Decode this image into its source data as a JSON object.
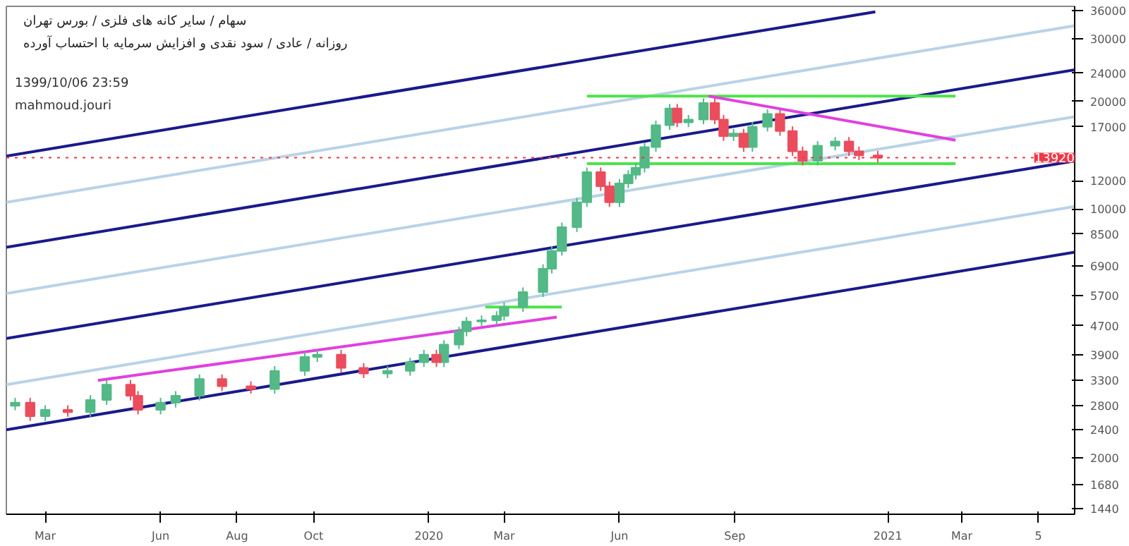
{
  "chart_data": {
    "type": "candlestick",
    "title": "سهام / سایر کانه های فلزی / بورس تهران",
    "subtitle": "روزانه / عادی / سود نقدی و افزایش سرمایه با احتساب آورده",
    "annotations": [
      "1399/10/06 23:59",
      "mahmoud.jouri"
    ],
    "log": "y",
    "xlim": [
      "2019-01-29",
      "2021-05-30"
    ],
    "ylim": [
      1390,
      37000
    ],
    "xticks": [
      {
        "value": "2019-03-01",
        "label": "Mar"
      },
      {
        "value": "2019-06-01",
        "label": "Jun"
      },
      {
        "value": "2019-08-01",
        "label": "Aug"
      },
      {
        "value": "2019-10-01",
        "label": "Oct"
      },
      {
        "value": "2020-01-01",
        "label": "2020"
      },
      {
        "value": "2020-03-01",
        "label": "Mar"
      },
      {
        "value": "2020-06-01",
        "label": "Jun"
      },
      {
        "value": "2020-09-01",
        "label": "Sep"
      },
      {
        "value": "2021-01-01",
        "label": "2021"
      },
      {
        "value": "2021-03-01",
        "label": "Mar"
      },
      {
        "value": "2021-05-01",
        "label": "5"
      }
    ],
    "yticks": [
      1440,
      1680,
      2000,
      2400,
      2800,
      3300,
      3900,
      4700,
      5700,
      6900,
      8500,
      10000,
      12000,
      17000,
      20000,
      24000,
      30000,
      36000
    ],
    "x": [
      "2019-02-05",
      "2019-02-17",
      "2019-03-01",
      "2019-03-19",
      "2019-04-06",
      "2019-04-19",
      "2019-05-08",
      "2019-05-14",
      "2019-06-01",
      "2019-06-13",
      "2019-07-02",
      "2019-07-20",
      "2019-08-12",
      "2019-08-31",
      "2019-09-24",
      "2019-10-04",
      "2019-10-23",
      "2019-11-10",
      "2019-11-29",
      "2019-12-17",
      "2019-12-28",
      "2020-01-07",
      "2020-01-13",
      "2020-01-25",
      "2020-01-31",
      "2020-02-12",
      "2020-02-24",
      "2020-03-01",
      "2020-03-16",
      "2020-04-01",
      "2020-04-08",
      "2020-04-16",
      "2020-04-28",
      "2020-05-06",
      "2020-05-17",
      "2020-05-24",
      "2020-06-01",
      "2020-06-08",
      "2020-06-14",
      "2020-06-21",
      "2020-06-30",
      "2020-07-11",
      "2020-07-17",
      "2020-07-26",
      "2020-08-07",
      "2020-08-16",
      "2020-08-23",
      "2020-08-31",
      "2020-09-08",
      "2020-09-15",
      "2020-09-27",
      "2020-10-07",
      "2020-10-17",
      "2020-10-25",
      "2020-11-06",
      "2020-11-20",
      "2020-12-01",
      "2020-12-09",
      "2020-12-24"
    ],
    "ohlc": [
      [
        2800,
        2950,
        2720,
        2860
      ],
      [
        2860,
        2950,
        2540,
        2620
      ],
      [
        2620,
        2810,
        2540,
        2730
      ],
      [
        2730,
        2810,
        2610,
        2690
      ],
      [
        2690,
        3000,
        2610,
        2910
      ],
      [
        2910,
        3310,
        2820,
        3210
      ],
      [
        3210,
        3310,
        2900,
        2990
      ],
      [
        2990,
        3080,
        2650,
        2730
      ],
      [
        2730,
        2950,
        2650,
        2860
      ],
      [
        2860,
        3080,
        2770,
        2990
      ],
      [
        2990,
        3430,
        2900,
        3330
      ],
      [
        3330,
        3430,
        3080,
        3180
      ],
      [
        3180,
        3280,
        3030,
        3120
      ],
      [
        3120,
        3620,
        3030,
        3510
      ],
      [
        3510,
        3960,
        3400,
        3840
      ],
      [
        3840,
        4020,
        3720,
        3900
      ],
      [
        3900,
        4020,
        3470,
        3580
      ],
      [
        3580,
        3690,
        3350,
        3450
      ],
      [
        3450,
        3620,
        3350,
        3510
      ],
      [
        3510,
        3820,
        3400,
        3710
      ],
      [
        3710,
        4020,
        3600,
        3900
      ],
      [
        3900,
        4020,
        3600,
        3710
      ],
      [
        3710,
        4280,
        3600,
        4160
      ],
      [
        4160,
        4670,
        4040,
        4530
      ],
      [
        4530,
        4970,
        4390,
        4830
      ],
      [
        4830,
        5020,
        4690,
        4870
      ],
      [
        4870,
        5160,
        4720,
        5010
      ],
      [
        5010,
        5460,
        4860,
        5300
      ],
      [
        5300,
        6020,
        5140,
        5840
      ],
      [
        5840,
        6990,
        5660,
        6790
      ],
      [
        6790,
        7850,
        6590,
        7620
      ],
      [
        7620,
        9150,
        7390,
        8880
      ],
      [
        8880,
        10740,
        8610,
        10430
      ],
      [
        10430,
        13060,
        10120,
        12680
      ],
      [
        12680,
        13060,
        11220,
        11570
      ],
      [
        11570,
        11920,
        10120,
        10430
      ],
      [
        10430,
        12130,
        10120,
        11780
      ],
      [
        11780,
        12830,
        11430,
        12460
      ],
      [
        12460,
        13430,
        12090,
        13040
      ],
      [
        13040,
        15360,
        12650,
        14910
      ],
      [
        14910,
        17670,
        14460,
        17160
      ],
      [
        17160,
        19690,
        16650,
        19120
      ],
      [
        19120,
        19690,
        16960,
        17480
      ],
      [
        17480,
        18340,
        16960,
        17810
      ],
      [
        17810,
        20410,
        17280,
        19820
      ],
      [
        19820,
        20410,
        17280,
        17810
      ],
      [
        17810,
        18340,
        15510,
        15990
      ],
      [
        15990,
        16760,
        15510,
        16270
      ],
      [
        16270,
        16760,
        14460,
        14910
      ],
      [
        14910,
        17510,
        14460,
        17000
      ],
      [
        17000,
        19010,
        16490,
        18460
      ],
      [
        18460,
        19010,
        16040,
        16540
      ],
      [
        16540,
        17040,
        14070,
        14510
      ],
      [
        14510,
        14950,
        13230,
        13640
      ],
      [
        13640,
        15490,
        13230,
        15040
      ],
      [
        15040,
        15910,
        14590,
        15450
      ],
      [
        15450,
        15910,
        14070,
        14510
      ],
      [
        14510,
        14950,
        13700,
        14120
      ],
      [
        14120,
        14540,
        13500,
        13920
      ]
    ],
    "series": [
      {
        "type": "line",
        "color": "#1a1a8c",
        "x": [
          "2019-01-29",
          "2020-12-22"
        ],
        "values": [
          14060,
          35720
        ]
      },
      {
        "type": "line",
        "color": "#1a1a8c",
        "x": [
          "2019-01-29",
          "2021-05-30"
        ],
        "values": [
          7800,
          24550
        ]
      },
      {
        "type": "line",
        "color": "#1a1a8c",
        "x": [
          "2019-01-29",
          "2021-05-30"
        ],
        "values": [
          4330,
          13630
        ]
      },
      {
        "type": "line",
        "color": "#1a1a8c",
        "x": [
          "2019-01-29",
          "2021-05-30"
        ],
        "values": [
          2400,
          7560
        ]
      },
      {
        "type": "line",
        "color": "#b9d3e6",
        "x": [
          "2019-01-29",
          "2021-05-30"
        ],
        "values": [
          10430,
          32660
        ]
      },
      {
        "type": "line",
        "color": "#b9d3e6",
        "x": [
          "2019-01-29",
          "2021-05-30"
        ],
        "values": [
          5790,
          18130
        ]
      },
      {
        "type": "line",
        "color": "#b9d3e6",
        "x": [
          "2019-01-29",
          "2021-05-30"
        ],
        "values": [
          3210,
          10150
        ]
      },
      {
        "type": "line",
        "color": "#4ce34c",
        "x": [
          "2020-05-06",
          "2021-02-24"
        ],
        "values": [
          20720,
          20720
        ]
      },
      {
        "type": "line",
        "color": "#4ce34c",
        "x": [
          "2020-05-06",
          "2021-02-24"
        ],
        "values": [
          13390,
          13390
        ]
      },
      {
        "type": "line",
        "color": "#4ce34c",
        "x": [
          "2020-02-15",
          "2020-04-16"
        ],
        "values": [
          5300,
          5300
        ]
      },
      {
        "type": "line",
        "color": "#e040e0",
        "x": [
          "2019-04-12",
          "2020-04-12"
        ],
        "values": [
          3300,
          4970
        ]
      },
      {
        "type": "line",
        "color": "#e040e0",
        "x": [
          "2020-08-11",
          "2021-02-24"
        ],
        "values": [
          20720,
          15580
        ]
      }
    ],
    "ref_lines": [
      {
        "axis": "y",
        "value": 13920,
        "label": "13920",
        "color": "#f23645",
        "line_style": "dotted"
      }
    ]
  }
}
